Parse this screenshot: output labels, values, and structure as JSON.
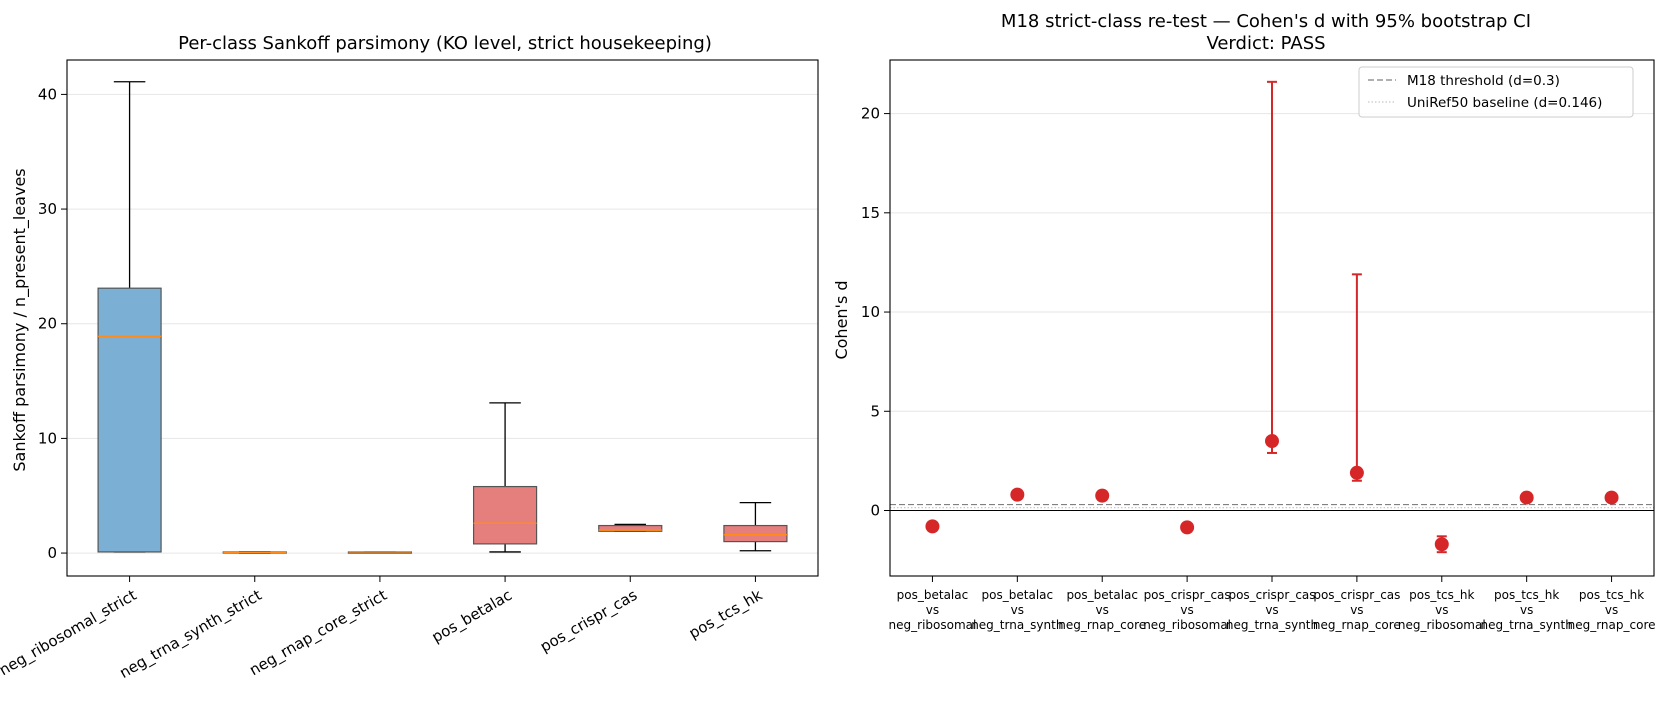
{
  "chart_data": [
    {
      "type": "box",
      "title": "Per-class Sankoff parsimony (KO level, strict housekeeping)",
      "xlabel": "",
      "ylabel": "Sankoff parsimony / n_present_leaves",
      "ylim": [
        -2,
        43
      ],
      "yticks": [
        0,
        10,
        20,
        30,
        40
      ],
      "grid": "y",
      "categories": [
        "neg_ribosomal_strict",
        "neg_trna_synth_strict",
        "neg_rnap_core_strict",
        "pos_betalac",
        "pos_crispr_cas",
        "pos_tcs_hk"
      ],
      "boxes": [
        {
          "min": 0.1,
          "q1": 0.1,
          "median": 18.9,
          "q3": 23.1,
          "max": 41.1,
          "color": "#7bafd4"
        },
        {
          "min": 0.0,
          "q1": 0.0,
          "median": 0.05,
          "q3": 0.1,
          "max": 0.1,
          "color": "#7bafd4"
        },
        {
          "min": 0.1,
          "q1": 0.1,
          "median": 0.1,
          "q3": 0.1,
          "max": 0.1,
          "color": "#7bafd4"
        },
        {
          "min": 0.1,
          "q1": 0.8,
          "median": 2.6,
          "q3": 5.8,
          "max": 13.1,
          "color": "#e57f7d"
        },
        {
          "min": 1.9,
          "q1": 1.9,
          "median": 2.0,
          "q3": 2.4,
          "max": 2.5,
          "color": "#e57f7d"
        },
        {
          "min": 0.2,
          "q1": 1.0,
          "median": 1.6,
          "q3": 2.4,
          "max": 4.4,
          "color": "#e57f7d"
        }
      ],
      "median_color": "#ff8c1a"
    },
    {
      "type": "errorbar",
      "title": "M18 strict-class re-test — Cohen's d with 95% bootstrap CI",
      "subtitle": "Verdict: PASS",
      "xlabel": "",
      "ylabel": "Cohen's d",
      "ylim": [
        -3.3,
        22.7
      ],
      "yticks": [
        0,
        5,
        10,
        15,
        20
      ],
      "grid": "y",
      "legend_position": "top-right",
      "categories": [
        [
          "pos_betalac",
          "vs",
          "neg_ribosomal"
        ],
        [
          "pos_betalac",
          "vs",
          "neg_trna_synth"
        ],
        [
          "pos_betalac",
          "vs",
          "neg_rnap_core"
        ],
        [
          "pos_crispr_cas",
          "vs",
          "neg_ribosomal"
        ],
        [
          "pos_crispr_cas",
          "vs",
          "neg_trna_synth"
        ],
        [
          "pos_crispr_cas",
          "vs",
          "neg_rnap_core"
        ],
        [
          "pos_tcs_hk",
          "vs",
          "neg_ribosomal"
        ],
        [
          "pos_tcs_hk",
          "vs",
          "neg_trna_synth"
        ],
        [
          "pos_tcs_hk",
          "vs",
          "neg_rnap_core"
        ]
      ],
      "points": [
        {
          "d": -0.8,
          "ci_low": -1.0,
          "ci_high": -0.6
        },
        {
          "d": 0.8,
          "ci_low": 0.7,
          "ci_high": 0.9
        },
        {
          "d": 0.75,
          "ci_low": 0.65,
          "ci_high": 0.85
        },
        {
          "d": -0.85,
          "ci_low": -1.0,
          "ci_high": -0.7
        },
        {
          "d": 3.5,
          "ci_low": 2.9,
          "ci_high": 21.6
        },
        {
          "d": 1.9,
          "ci_low": 1.5,
          "ci_high": 11.9
        },
        {
          "d": -1.7,
          "ci_low": -2.1,
          "ci_high": -1.3
        },
        {
          "d": 0.65,
          "ci_low": 0.55,
          "ci_high": 0.75
        },
        {
          "d": 0.65,
          "ci_low": 0.55,
          "ci_high": 0.75
        }
      ],
      "point_color": "#d62728",
      "reference_lines": [
        {
          "name": "M18 threshold (d=0.3)",
          "value": 0.3,
          "style": "dashed",
          "color": "#808080"
        },
        {
          "name": "UniRef50 baseline (d=0.146)",
          "value": 0.146,
          "style": "dotted",
          "color": "#c8c8c8"
        },
        {
          "name": "",
          "value": 0,
          "style": "solid",
          "color": "#000000"
        }
      ]
    }
  ]
}
